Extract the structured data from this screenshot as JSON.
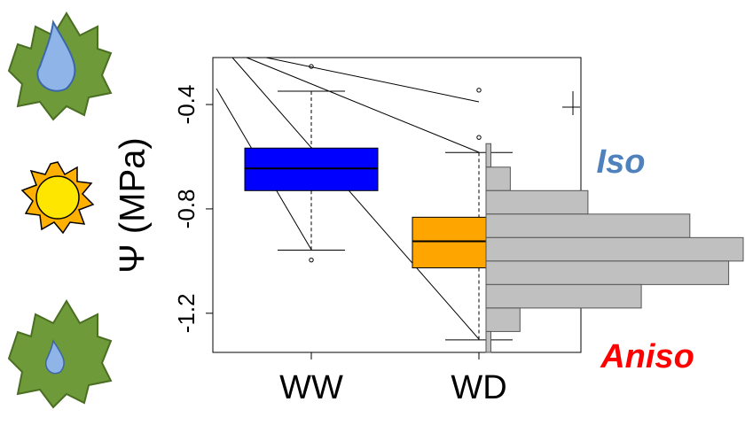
{
  "chart_data": {
    "type": "box",
    "y_label": "Ψ (MPa)",
    "ylim": [
      -1.35,
      -0.22
    ],
    "yticks": [
      -0.4,
      -0.8,
      -1.2
    ],
    "categories": [
      "WW",
      "WD"
    ],
    "boxes": [
      {
        "color": "#0000ff",
        "whisker_low": -0.958,
        "q1": -0.73,
        "median": -0.645,
        "q3": -0.567,
        "whisker_high": -0.349,
        "outliers": [
          -0.254,
          -0.996
        ]
      },
      {
        "color": "#ffa500",
        "whisker_low": -1.302,
        "q1": -1.026,
        "median": -0.924,
        "q3": -0.832,
        "whisker_high": -0.584,
        "outliers": [
          -0.345,
          -0.526
        ]
      }
    ],
    "histogram": {
      "color": "#c0c0c0",
      "bins": [
        -0.55,
        -0.64,
        -0.73,
        -0.82,
        -0.91,
        -1.0,
        -1.09,
        -1.18,
        -1.27,
        -1.35
      ],
      "counts": [
        1,
        5,
        21,
        42,
        53,
        50,
        32,
        7,
        1
      ],
      "count_lim": [
        0,
        53
      ]
    },
    "annotations": [
      {
        "text": "Iso",
        "color": "#4f81bd"
      },
      {
        "text": "Aniso",
        "color": "#ff0000"
      }
    ]
  }
}
